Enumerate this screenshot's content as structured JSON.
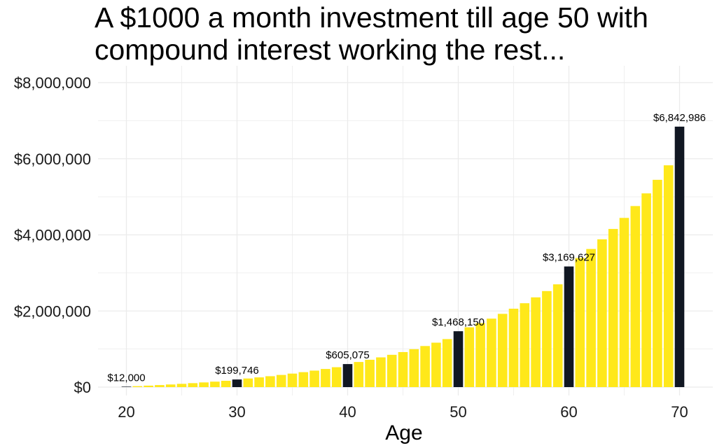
{
  "chart_data": {
    "type": "bar",
    "title": "A $1000 a month investment till age 50 with compound interest working the rest...",
    "xlabel": "Age",
    "ylabel": "",
    "grid": true,
    "legend": "none",
    "xlim": [
      18,
      72
    ],
    "ylim": [
      0,
      8000000
    ],
    "x_ticks": [
      20,
      30,
      40,
      50,
      60,
      70
    ],
    "y_ticks": [
      0,
      2000000,
      4000000,
      6000000,
      8000000
    ],
    "y_tick_labels": [
      "$0",
      "$2,000,000",
      "$4,000,000",
      "$6,000,000",
      "$8,000,000"
    ],
    "colors": {
      "bar": "#FFE81A",
      "highlight": "#111722",
      "grid": "#EBEBEB"
    },
    "x": [
      20,
      21,
      22,
      23,
      24,
      25,
      26,
      27,
      28,
      29,
      30,
      31,
      32,
      33,
      34,
      35,
      36,
      37,
      38,
      39,
      40,
      41,
      42,
      43,
      44,
      45,
      46,
      47,
      48,
      49,
      50,
      51,
      52,
      53,
      54,
      55,
      56,
      57,
      58,
      59,
      60,
      61,
      62,
      63,
      64,
      65,
      66,
      67,
      68,
      69,
      70
    ],
    "values": [
      12000,
      24840,
      38579,
      53279,
      69009,
      85840,
      103849,
      123119,
      143738,
      165800,
      199746,
      226723,
      255583,
      286474,
      319527,
      354890,
      392730,
      433221,
      476546,
      522904,
      605075,
      659880,
      718517,
      781260,
      848390,
      920216,
      997079,
      1079320,
      1167323,
      1261480,
      1468150,
      1571000,
      1681000,
      1798800,
      1924800,
      2059500,
      2203700,
      2358000,
      2523000,
      2700000,
      3169627,
      3391500,
      3628900,
      3883000,
      4154800,
      4445600,
      4756800,
      5089800,
      5446100,
      5827300,
      6842986
    ],
    "highlight_x": [
      20,
      30,
      40,
      50,
      60,
      70
    ],
    "data_labels": [
      {
        "x": 20,
        "text": "$12,000"
      },
      {
        "x": 30,
        "text": "$199,746"
      },
      {
        "x": 40,
        "text": "$605,075"
      },
      {
        "x": 50,
        "text": "$1,468,150"
      },
      {
        "x": 60,
        "text": "$3,169,627"
      },
      {
        "x": 70,
        "text": "$6,842,986"
      }
    ]
  }
}
